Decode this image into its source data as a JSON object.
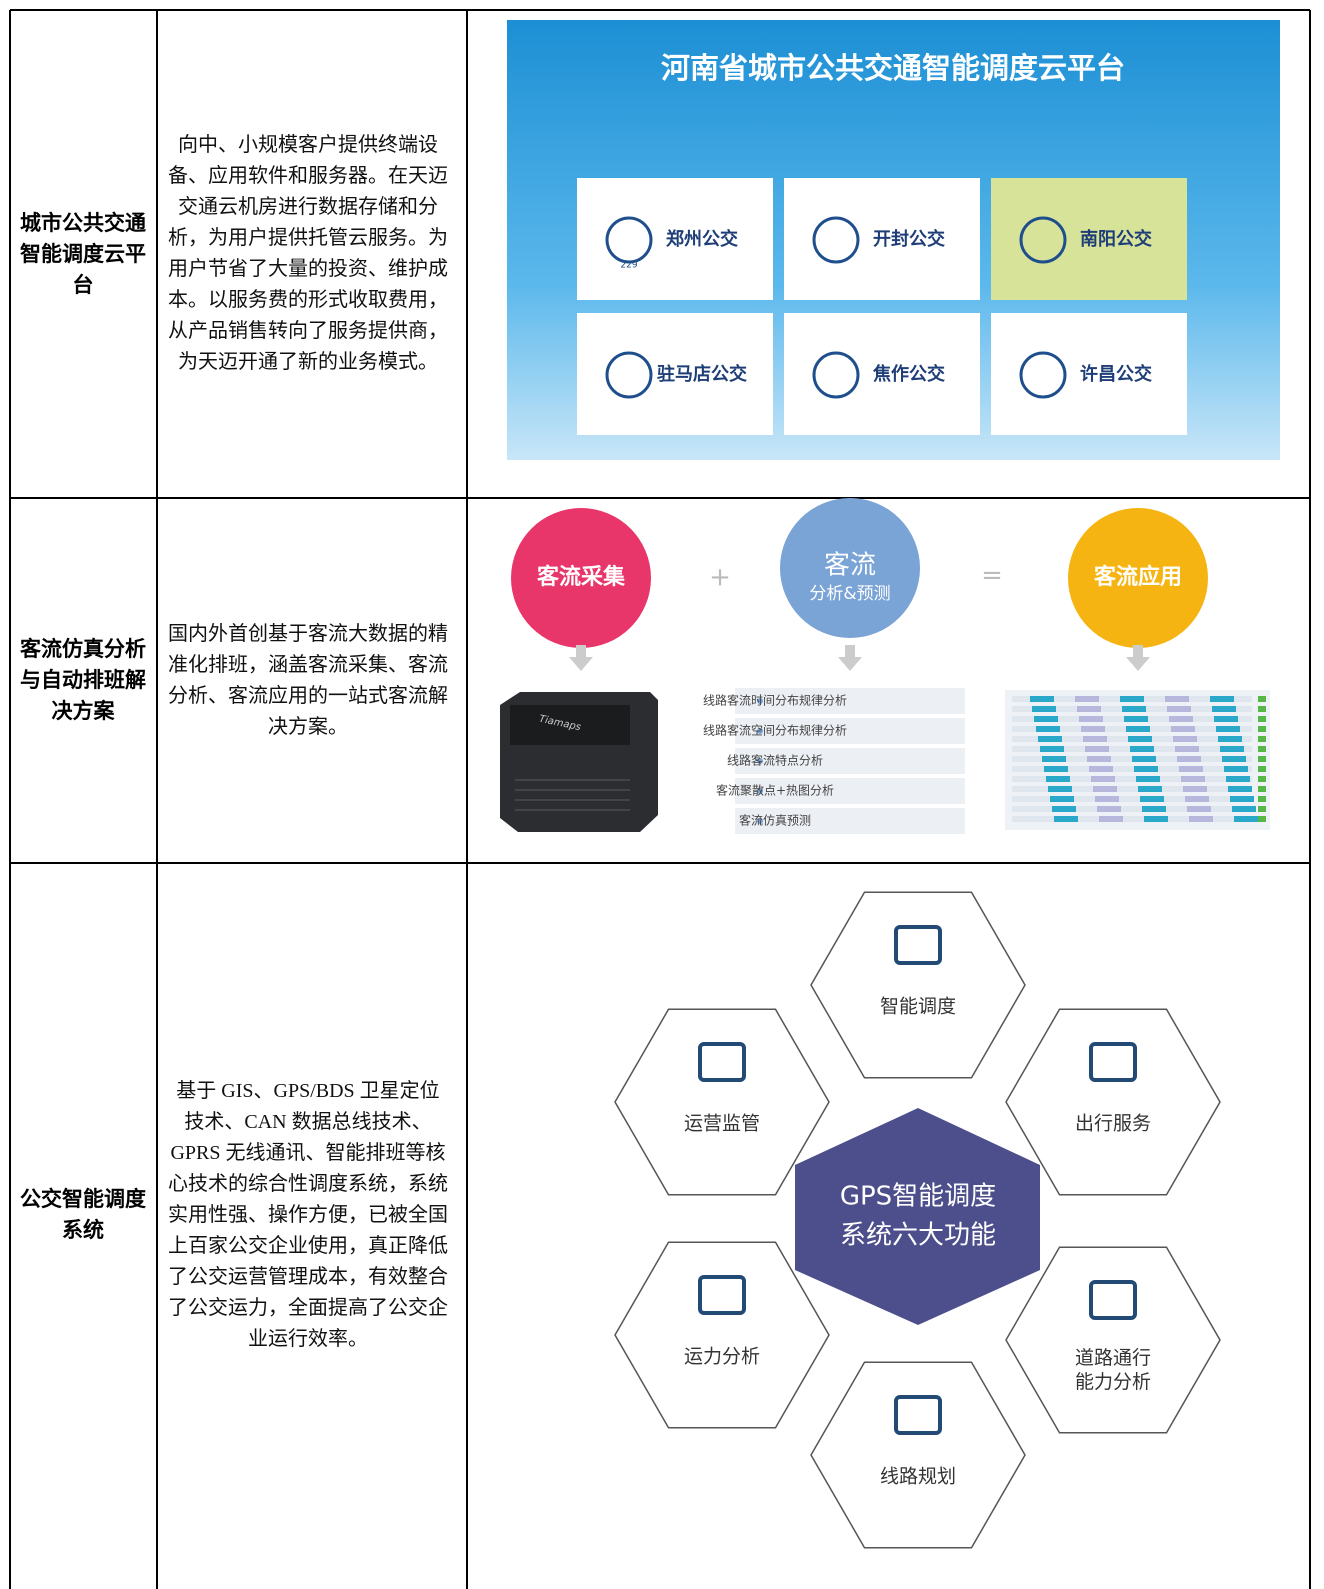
{
  "table": {
    "rows": [
      {
        "name": "城市公共交通智能调度云平台",
        "description": "向中、小规模客户提供终端设备、应用软件和服务器。在天迈交通云机房进行数据存储和分析，为用户提供托管云服务。为用户节省了大量的投资、维护成本。以服务费的形式收取费用，从产品销售转向了服务提供商，为天迈开通了新的业务模式。",
        "figure": {
          "title": "河南省城市公共交通智能调度云平台",
          "logo_text": "229",
          "tiles": [
            "郑州公交",
            "开封公交",
            "南阳公交",
            "驻马店公交",
            "焦作公交",
            "许昌公交"
          ]
        }
      },
      {
        "name": "客流仿真分析与自动排班解决方案",
        "description": "国内外首创基于客流大数据的精准化排班，涵盖客流采集、客流分析、客流应用的一站式客流解决方案。",
        "figure": {
          "steps": [
            "客流采集",
            "客流",
            "客流应用"
          ],
          "step_subtitle": "分析&预测",
          "plus": "+",
          "equals": "=",
          "device_label": "Tiamaps",
          "items": [
            "线路客流时间分布规律分析",
            "线路客流空间分布规律分析",
            "线路客流特点分析",
            "客流聚散点+热图分析",
            "客流仿真预测"
          ]
        }
      },
      {
        "name": "公交智能调度系统",
        "description": "基于 GIS、GPS/BDS 卫星定位技术、CAN 数据总线技术、GPRS 无线通讯、智能排班等核心技术的综合性调度系统，系统实用性强、操作方便，已被全国上百家公交企业使用，真正降低了公交运营管理成本，有效整合了公交运力，全面提高了公交企业运行效率。",
        "figure": {
          "center": [
            "GPS智能调度",
            "系统六大功能"
          ],
          "functions": [
            "智能调度",
            "出行服务",
            "道路通行能力分析",
            "线路规划",
            "运力分析",
            "运营监管"
          ]
        }
      }
    ]
  }
}
